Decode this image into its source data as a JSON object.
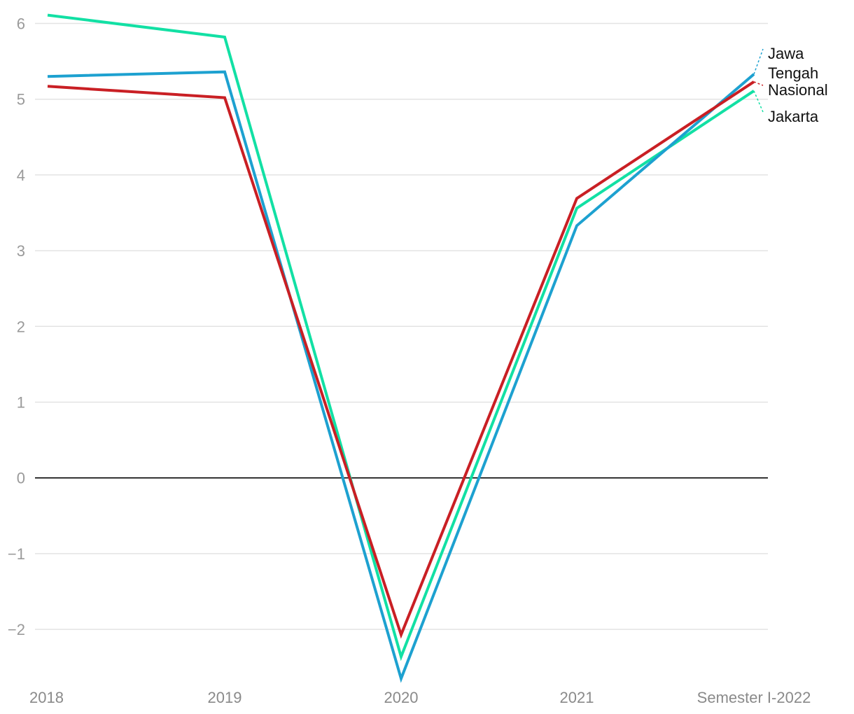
{
  "chart_data": {
    "type": "line",
    "x": [
      "2018",
      "2019",
      "2020",
      "2021",
      "Semester I-2022"
    ],
    "ylim": [
      -2.6,
      6.1
    ],
    "yticks": [
      -2,
      -1,
      0,
      1,
      2,
      3,
      4,
      5,
      6
    ],
    "ytick_labels": [
      "−2",
      "−1",
      "0",
      "1",
      "2",
      "3",
      "4",
      "5",
      "6"
    ],
    "grid": true,
    "legend": "inline-right",
    "series": [
      {
        "name": "Jakarta",
        "color": "#12e0a4",
        "values": [
          6.11,
          5.82,
          -2.36,
          3.56,
          5.11
        ],
        "label_lines": [
          "Jakarta"
        ]
      },
      {
        "name": "Jawa Tengah",
        "color": "#1da1d0",
        "values": [
          5.3,
          5.36,
          -2.65,
          3.33,
          5.33
        ],
        "label_lines": [
          "Jawa",
          "Tengah"
        ]
      },
      {
        "name": "Nasional",
        "color": "#c91f24",
        "values": [
          5.17,
          5.02,
          -2.07,
          3.69,
          5.23
        ],
        "label_lines": [
          "Nasional"
        ]
      }
    ]
  }
}
